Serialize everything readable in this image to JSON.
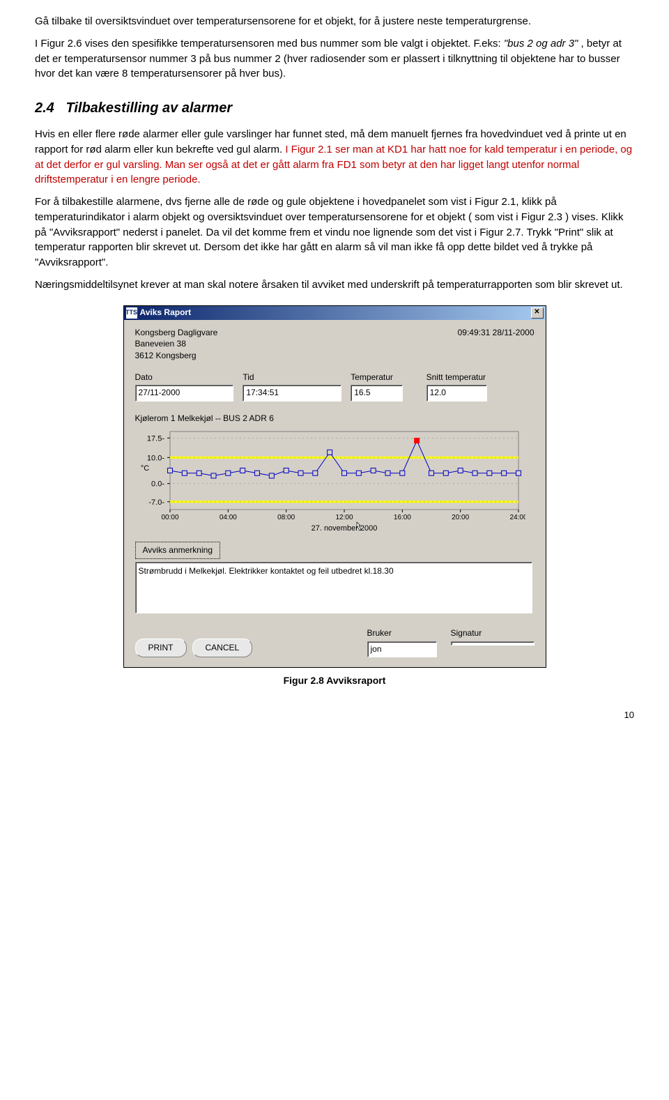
{
  "p1": "Gå tilbake til oversiktsvinduet over temperatursensorene for et objekt, for å justere neste temperaturgrense.",
  "p2a": "I Figur 2.6 vises den spesifikke temperatursensoren med bus nummer som ble valgt i objektet. F.eks: ",
  "p2b": "\"bus 2 og adr 3\"",
  "p2c": ", betyr at det er temperatursensor nummer 3 på bus nummer 2 (hver radiosender som er plassert i tilknyttning til objektene har to busser hvor det kan være 8 temperatursensorer på hver bus).",
  "sec_num": "2.4",
  "sec_title": "Tilbakestilling av alarmer",
  "p3a": "Hvis en eller flere røde alarmer eller gule varslinger har funnet sted, må dem manuelt fjernes fra hovedvinduet ved å printe ut en rapport for rød alarm eller kun bekrefte ved gul alarm. ",
  "p3b": "I Figur 2.1 ser man at KD1 har hatt noe for kald temperatur i en periode, og at det derfor er gul varsling. Man ser også at det er gått alarm fra FD1 som betyr at den har ligget langt utenfor normal driftstemperatur i en lengre periode.",
  "p4": "For å tilbakestille alarmene, dvs fjerne alle de røde og gule objektene i hovedpanelet som vist i Figur 2.1, klikk på temperaturindikator i alarm objekt og oversiktsvinduet over temperatursensorene for et objekt ( som vist i Figur 2.3 ) vises. Klikk på \"Avviksrapport\" nederst i panelet. Da vil det komme frem et vindu noe lignende som det vist i Figur 2.7. Trykk \"Print\" slik at temperatur rapporten blir skrevet ut. Dersom det ikke har gått en alarm så vil man ikke få opp dette bildet ved å trykke på \"Avviksrapport\".",
  "p5": "Næringsmiddeltilsynet krever at man skal notere årsaken til avviket med underskrift på temperaturrapporten som blir skrevet ut.",
  "dialog": {
    "titlebar_icon": "TTS",
    "title": "Aviks Raport",
    "addr1": "Kongsberg Dagligvare",
    "addr2": "Baneveien 38",
    "addr3": "3612 Kongsberg",
    "timestamp": "09:49:31  28/11-2000",
    "labels": {
      "dato": "Dato",
      "tid": "Tid",
      "temp": "Temperatur",
      "snitt": "Snitt temperatur"
    },
    "values": {
      "dato": "27/11-2000",
      "tid": "17:34:51",
      "temp": "16.5",
      "snitt": "12.0"
    },
    "chart_title": "Kjølerom 1  Melkekjøl  --  BUS 2 ADR 6",
    "remark_btn": "Avviks anmerkning",
    "remark_text": "Strømbrudd i Melkekjøl. Elektrikker kontaktet og feil utbedret kl.18.30",
    "bruker_label": "Bruker",
    "bruker_val": "jon",
    "signatur_label": "Signatur",
    "print": "PRINT",
    "cancel": "CANCEL"
  },
  "chart": {
    "type": "line",
    "ylabel": "°C",
    "y_ticks": [
      -7.0,
      0.0,
      10.0,
      17.5
    ],
    "x_ticks": [
      "00:00",
      "04:00",
      "08:00",
      "12:00",
      "16:00",
      "20:00",
      "24:00"
    ],
    "x_date": "27. november 2000",
    "ylim": [
      -10,
      20
    ],
    "xlim": [
      0,
      24
    ],
    "point_interval_h": 1,
    "values": [
      5,
      4,
      4,
      3,
      4,
      5,
      4,
      3,
      5,
      4,
      4,
      12,
      4,
      4,
      5,
      4,
      4,
      16.5,
      4,
      4,
      5,
      4,
      4,
      4,
      4
    ],
    "alarm_idx": 17,
    "upper_band": 10.0,
    "lower_band": -7.0,
    "bg": "#d4d0c8",
    "grid": "#808080",
    "line": "#0000c0",
    "marker_fill": "#d4d0c8",
    "marker_stroke": "#0000c0",
    "alarm_marker": "#ff0000",
    "band_color": "#ffff00",
    "marker_size": 3.5,
    "line_width": 1
  },
  "caption": "Figur 2.8  Avviksraport",
  "pagenum": "10"
}
